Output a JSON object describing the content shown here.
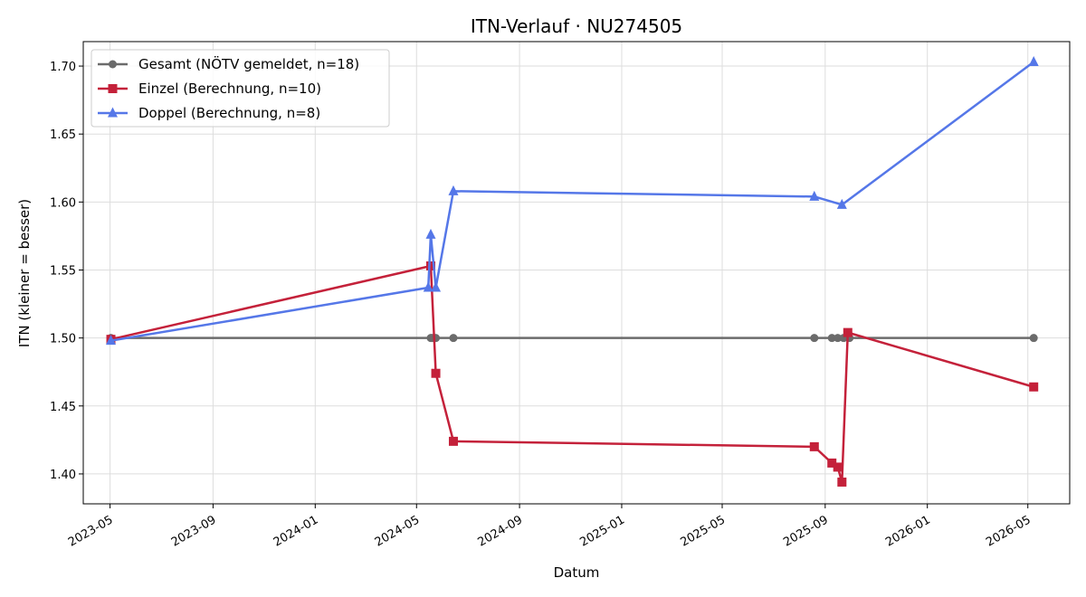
{
  "chart_data": {
    "type": "line",
    "title": "ITN-Verlauf · NU274505",
    "xlabel": "Datum",
    "ylabel": "ITN  (kleiner = besser)",
    "x_ticks": [
      "2023-05",
      "2023-09",
      "2024-01",
      "2024-05",
      "2024-09",
      "2025-01",
      "2025-05",
      "2025-09",
      "2026-01",
      "2026-05"
    ],
    "y_ticks": [
      "1.40",
      "1.45",
      "1.50",
      "1.55",
      "1.60",
      "1.65",
      "1.70"
    ],
    "xlim": [
      "2023-03-30",
      "2026-06-20"
    ],
    "ylim": [
      1.378,
      1.718
    ],
    "grid": true,
    "legend_position": "top-left",
    "series": [
      {
        "name": "Gesamt (NÖTV gemeldet, n=18)",
        "color": "#6b6b6b",
        "marker": "circle",
        "x": [
          "2023-05-02",
          "2024-05-18",
          "2024-05-19",
          "2024-05-21",
          "2024-05-24",
          "2024-06-14",
          "2025-08-19",
          "2025-09-09",
          "2025-09-16",
          "2025-09-23",
          "2025-09-30",
          "2026-05-08"
        ],
        "y": [
          1.5,
          1.5,
          1.5,
          1.5,
          1.5,
          1.5,
          1.5,
          1.5,
          1.5,
          1.5,
          1.5,
          1.5
        ]
      },
      {
        "name": "Einzel (Berechnung, n=10)",
        "color": "#c4213a",
        "marker": "square",
        "x": [
          "2023-05-02",
          "2024-05-18",
          "2024-05-24",
          "2024-06-14",
          "2025-08-19",
          "2025-09-09",
          "2025-09-16",
          "2025-09-21",
          "2025-09-28",
          "2026-05-08"
        ],
        "y": [
          1.499,
          1.553,
          1.474,
          1.424,
          1.42,
          1.408,
          1.405,
          1.394,
          1.504,
          1.464
        ]
      },
      {
        "name": "Doppel (Berechnung, n=8)",
        "color": "#5577e8",
        "marker": "triangle",
        "x": [
          "2023-05-02",
          "2024-05-15",
          "2024-05-18",
          "2024-05-24",
          "2024-06-14",
          "2025-08-19",
          "2025-09-21",
          "2026-05-08"
        ],
        "y": [
          1.498,
          1.537,
          1.576,
          1.537,
          1.608,
          1.604,
          1.598,
          1.703
        ]
      }
    ]
  }
}
